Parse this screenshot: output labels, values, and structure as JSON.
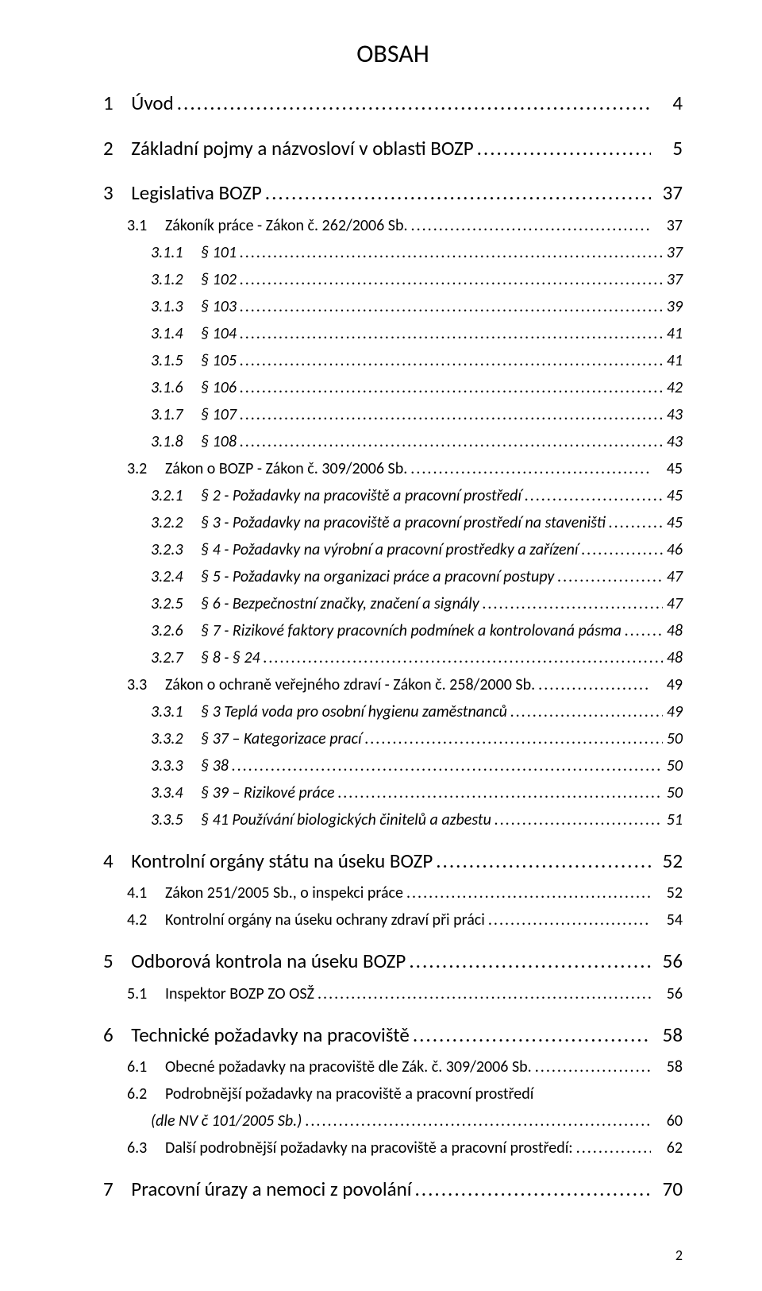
{
  "title": "OBSAH",
  "page_number": "2",
  "colors": {
    "text": "#000000",
    "background": "#ffffff"
  },
  "typography": {
    "title_fontsize": 32,
    "level1_fontsize": 25,
    "level2_fontsize": 20,
    "level3_fontsize": 20,
    "level3_italic": true,
    "footer_fontsize": 18,
    "font_family": "Calibri"
  },
  "toc": [
    {
      "level": 1,
      "num": "1",
      "title": "Úvod",
      "page": "4"
    },
    {
      "level": 1,
      "num": "2",
      "title": "Základní pojmy a názvosloví v oblasti BOZP",
      "page": "5"
    },
    {
      "level": 1,
      "num": "3",
      "title": "Legislativa BOZP",
      "page": "37"
    },
    {
      "level": 2,
      "num": "3.1",
      "title": "Zákoník práce - Zákon č. 262/2006 Sb.",
      "page": "37"
    },
    {
      "level": 3,
      "num": "3.1.1",
      "title": "§ 101",
      "page": "37"
    },
    {
      "level": 3,
      "num": "3.1.2",
      "title": "§ 102",
      "page": "37"
    },
    {
      "level": 3,
      "num": "3.1.3",
      "title": "§ 103",
      "page": "39"
    },
    {
      "level": 3,
      "num": "3.1.4",
      "title": "§ 104",
      "page": "41"
    },
    {
      "level": 3,
      "num": "3.1.5",
      "title": "§ 105",
      "page": "41"
    },
    {
      "level": 3,
      "num": "3.1.6",
      "title": "§ 106",
      "page": "42"
    },
    {
      "level": 3,
      "num": "3.1.7",
      "title": "§ 107",
      "page": "43"
    },
    {
      "level": 3,
      "num": "3.1.8",
      "title": "§ 108",
      "page": "43"
    },
    {
      "level": 2,
      "num": "3.2",
      "title": "Zákon o BOZP - Zákon č. 309/2006 Sb.",
      "page": "45"
    },
    {
      "level": 3,
      "num": "3.2.1",
      "title": "§ 2 - Požadavky na pracoviště a pracovní prostředí",
      "page": "45"
    },
    {
      "level": 3,
      "num": "3.2.2",
      "title": "§ 3 - Požadavky na pracoviště a pracovní prostředí na staveništi",
      "page": "45"
    },
    {
      "level": 3,
      "num": "3.2.3",
      "title": "§ 4 - Požadavky na výrobní a pracovní prostředky a zařízení",
      "page": "46"
    },
    {
      "level": 3,
      "num": "3.2.4",
      "title": "§ 5 - Požadavky na organizaci práce a pracovní postupy",
      "page": "47"
    },
    {
      "level": 3,
      "num": "3.2.5",
      "title": "§ 6 - Bezpečnostní značky, značení a signály",
      "page": "47"
    },
    {
      "level": 3,
      "num": "3.2.6",
      "title": "§ 7 - Rizikové faktory pracovních podmínek a kontrolovaná pásma",
      "page": "48"
    },
    {
      "level": 3,
      "num": "3.2.7",
      "title": "§ 8 - § 24",
      "page": "48"
    },
    {
      "level": 2,
      "num": "3.3",
      "title": "Zákon o ochraně veřejného zdraví - Zákon č. 258/2000 Sb.",
      "page": "49"
    },
    {
      "level": 3,
      "num": "3.3.1",
      "title": "§ 3 Teplá voda pro osobní hygienu zaměstnanců",
      "page": "49"
    },
    {
      "level": 3,
      "num": "3.3.2",
      "title": "§ 37 – Kategorizace prací",
      "page": "50"
    },
    {
      "level": 3,
      "num": "3.3.3",
      "title": "§ 38",
      "page": "50"
    },
    {
      "level": 3,
      "num": "3.3.4",
      "title": "§ 39 – Rizikové práce",
      "page": "50"
    },
    {
      "level": 3,
      "num": "3.3.5",
      "title": "§ 41 Používání biologických činitelů a azbestu",
      "page": "51"
    },
    {
      "level": 1,
      "num": "4",
      "title": "Kontrolní orgány státu na úseku BOZP",
      "page": "52"
    },
    {
      "level": 2,
      "num": "4.1",
      "title": "Zákon 251/2005 Sb., o inspekci práce",
      "page": "52"
    },
    {
      "level": 2,
      "num": "4.2",
      "title": "Kontrolní orgány na úseku ochrany zdraví při práci",
      "page": "54"
    },
    {
      "level": 1,
      "num": "5",
      "title": "Odborová kontrola na úseku BOZP",
      "page": "56"
    },
    {
      "level": 2,
      "num": "5.1",
      "title": "Inspektor BOZP ZO OSŽ",
      "page": "56"
    },
    {
      "level": 1,
      "num": "6",
      "title": "Technické požadavky na pracoviště",
      "page": "58"
    },
    {
      "level": 2,
      "num": "6.1",
      "title": "Obecné požadavky na pracoviště dle Zák. č. 309/2006 Sb.",
      "page": "58"
    },
    {
      "level": 2,
      "num": "6.2",
      "title": "Podrobnější požadavky na pracoviště a pracovní prostředí",
      "page": "",
      "continuation": "(dle NV č 101/2005 Sb.)",
      "cont_page": "60"
    },
    {
      "level": 2,
      "num": "6.3",
      "title": "Další podrobnější požadavky na pracoviště a pracovní prostředí:",
      "page": "62"
    },
    {
      "level": 1,
      "num": "7",
      "title": "Pracovní úrazy a nemoci z povolání",
      "page": "70"
    }
  ]
}
